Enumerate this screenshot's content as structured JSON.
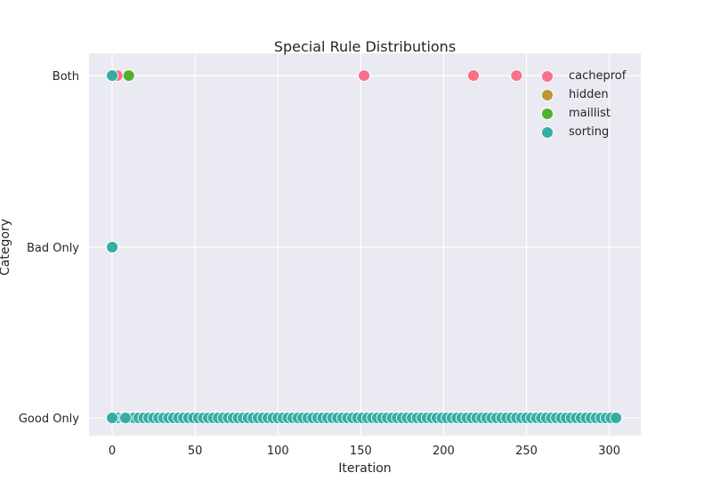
{
  "chart_data": {
    "type": "scatter",
    "title": "Special Rule Distributions",
    "xlabel": "Iteration",
    "ylabel": "Category",
    "xlim": [
      -14,
      319
    ],
    "xticks": [
      0,
      50,
      100,
      150,
      200,
      250,
      300
    ],
    "categories": [
      "Good Only",
      "Bad Only",
      "Both"
    ],
    "grid": true,
    "legend_position": "top-right",
    "series": [
      {
        "name": "cacheprof",
        "color": "#f77189",
        "points": [
          {
            "x": 3,
            "y": "Both"
          },
          {
            "x": 152,
            "y": "Both"
          },
          {
            "x": 218,
            "y": "Both"
          },
          {
            "x": 244,
            "y": "Both"
          }
        ]
      },
      {
        "name": "hidden",
        "color": "#bb9832",
        "points": [
          {
            "x": 2,
            "y": "Good Only"
          }
        ]
      },
      {
        "name": "maillist",
        "color": "#50b131",
        "points": [
          {
            "x": 10,
            "y": "Both"
          }
        ]
      },
      {
        "name": "sorting",
        "color": "#36ada4",
        "points": [
          {
            "x": 0,
            "y": "Both"
          },
          {
            "x": 0,
            "y": "Bad Only"
          },
          {
            "x": 0,
            "y": "Good Only"
          },
          {
            "x": 8,
            "y": "Good Only"
          },
          {
            "x": 304,
            "y": "Good Only"
          }
        ],
        "dense_range": {
          "category": "Good Only",
          "from": 1,
          "to": 303,
          "step": 3
        }
      }
    ]
  }
}
